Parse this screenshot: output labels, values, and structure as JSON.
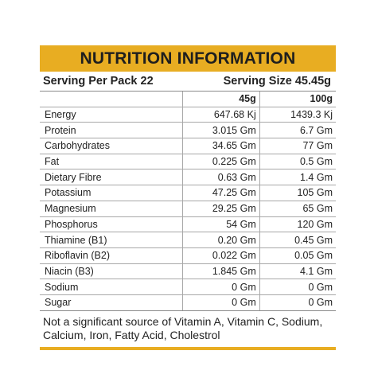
{
  "title": "NUTRITION INFORMATION",
  "serving": {
    "per_pack": "Serving Per Pack 22",
    "size": "Serving Size 45.45g"
  },
  "columns": [
    "45g",
    "100g"
  ],
  "rows": [
    {
      "name": "Energy",
      "v45": "647.68 Kj",
      "v100": "1439.3 Kj"
    },
    {
      "name": "Protein",
      "v45": "3.015 Gm",
      "v100": "6.7 Gm"
    },
    {
      "name": "Carbohydrates",
      "v45": "34.65 Gm",
      "v100": "77 Gm"
    },
    {
      "name": "Fat",
      "v45": "0.225 Gm",
      "v100": "0.5 Gm"
    },
    {
      "name": "Dietary Fibre",
      "v45": "0.63 Gm",
      "v100": "1.4 Gm"
    },
    {
      "name": "Potassium",
      "v45": "47.25 Gm",
      "v100": "105 Gm"
    },
    {
      "name": "Magnesium",
      "v45": "29.25 Gm",
      "v100": "65 Gm"
    },
    {
      "name": "Phosphorus",
      "v45": "54 Gm",
      "v100": "120 Gm"
    },
    {
      "name": "Thiamine (B1)",
      "v45": "0.20 Gm",
      "v100": "0.45 Gm"
    },
    {
      "name": "Riboflavin (B2)",
      "v45": "0.022 Gm",
      "v100": "0.05 Gm"
    },
    {
      "name": "Niacin (B3)",
      "v45": "1.845 Gm",
      "v100": "4.1 Gm"
    },
    {
      "name": "Sodium",
      "v45": "0 Gm",
      "v100": "0 Gm"
    },
    {
      "name": "Sugar",
      "v45": "0 Gm",
      "v100": "0 Gm"
    }
  ],
  "footnote": "Not a significant source of Vitamin A, Vitamin C, Sodium, Calcium, Iron, Fatty Acid, Cholestrol",
  "colors": {
    "accent": "#e8ad22",
    "rule": "#a8a8a8"
  }
}
